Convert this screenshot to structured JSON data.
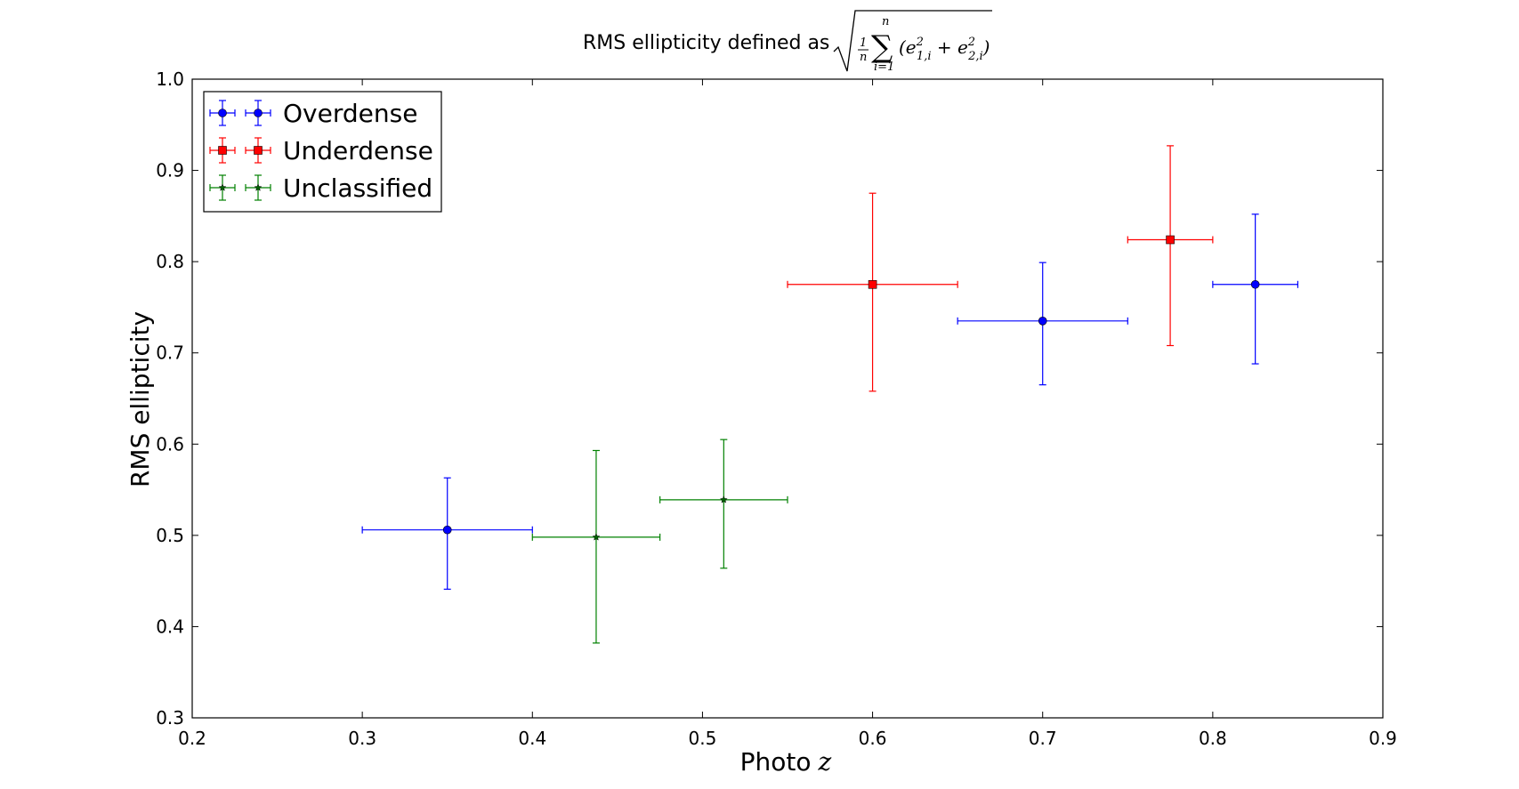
{
  "chart_data": {
    "type": "scatter",
    "title": "RMS ellipticity defined as",
    "title_formula": "√( (1/n) Σ_{i=1}^{n} (e²_{1,i} + e²_{2,i}) )",
    "xlabel": "Photo",
    "xlabel_math": "z",
    "ylabel": "RMS ellipticity",
    "xlim": [
      0.2,
      0.9
    ],
    "ylim": [
      0.3,
      1.0
    ],
    "xticks": [
      "0.2",
      "0.3",
      "0.4",
      "0.5",
      "0.6",
      "0.7",
      "0.8",
      "0.9"
    ],
    "yticks": [
      "0.3",
      "0.4",
      "0.5",
      "0.6",
      "0.7",
      "0.8",
      "0.9",
      "1.0"
    ],
    "grid": false,
    "legend_position": "top-left",
    "series": [
      {
        "name": "Overdense",
        "color": "#0000ff",
        "marker": "circle",
        "marker_color": "#0000ff",
        "points": [
          {
            "x": 0.35,
            "y": 0.506,
            "xerr": 0.05,
            "yerr_low": 0.065,
            "yerr_high": 0.057
          },
          {
            "x": 0.7,
            "y": 0.735,
            "xerr": 0.05,
            "yerr_low": 0.07,
            "yerr_high": 0.064
          },
          {
            "x": 0.825,
            "y": 0.775,
            "xerr": 0.025,
            "yerr_low": 0.087,
            "yerr_high": 0.077
          }
        ]
      },
      {
        "name": "Underdense",
        "color": "#ff0000",
        "marker": "square",
        "marker_color": "#ff0000",
        "points": [
          {
            "x": 0.6,
            "y": 0.775,
            "xerr": 0.05,
            "yerr_low": 0.117,
            "yerr_high": 0.1
          },
          {
            "x": 0.775,
            "y": 0.824,
            "xerr": 0.025,
            "yerr_low": 0.116,
            "yerr_high": 0.103
          }
        ]
      },
      {
        "name": "Unclassified",
        "color": "#008000",
        "marker": "star",
        "marker_color": "#006400",
        "points": [
          {
            "x": 0.4375,
            "y": 0.498,
            "xerr": 0.0375,
            "yerr_low": 0.116,
            "yerr_high": 0.095
          },
          {
            "x": 0.5125,
            "y": 0.539,
            "xerr": 0.0375,
            "yerr_low": 0.075,
            "yerr_high": 0.066
          }
        ]
      }
    ]
  }
}
